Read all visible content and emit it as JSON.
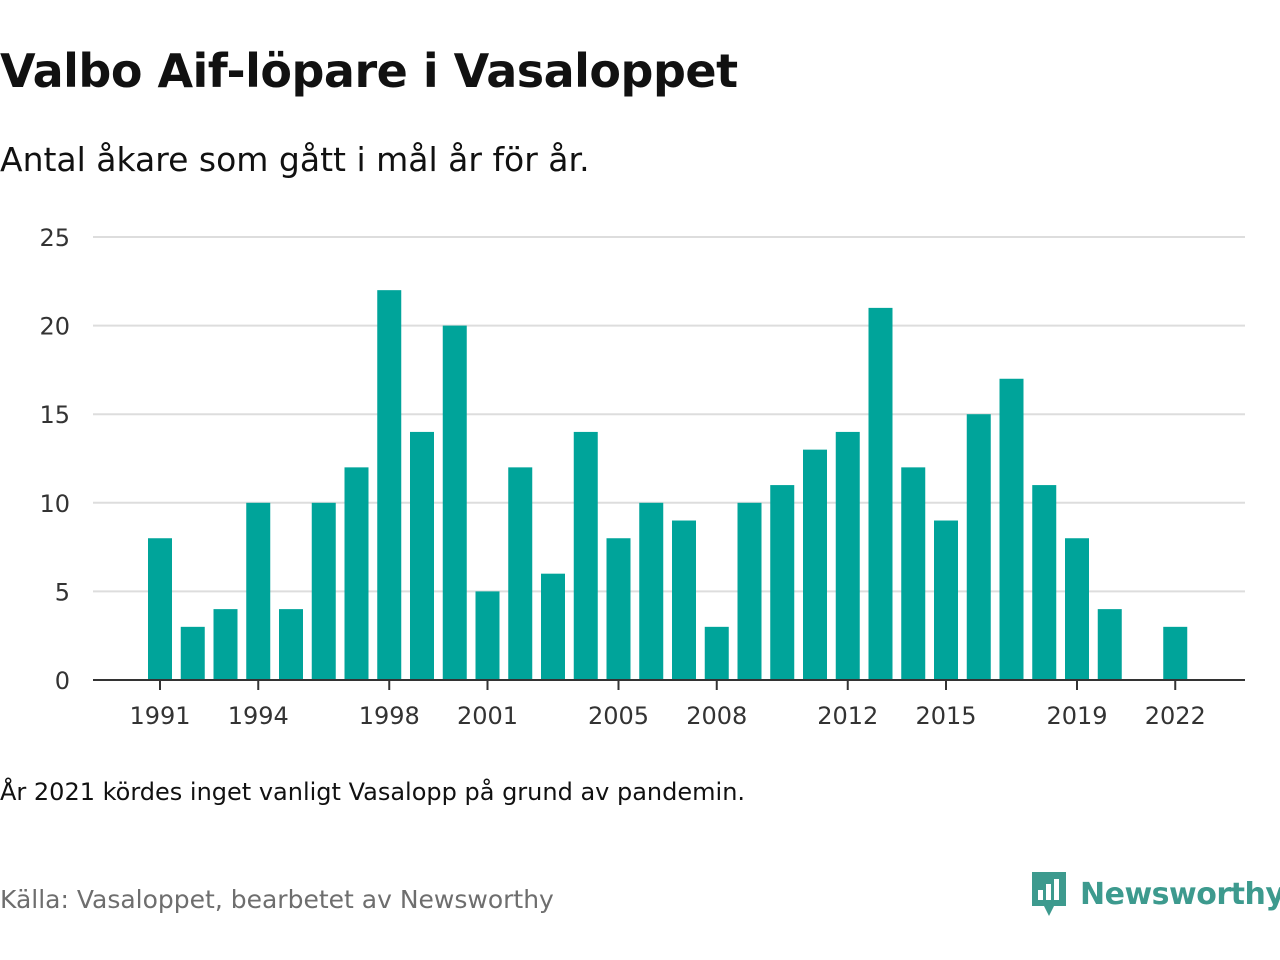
{
  "title": "Valbo Aif-löpare i Vasaloppet",
  "subtitle": "Antal åkare som gått i mål år för år.",
  "note": "År 2021 kördes inget vanligt Vasalopp på grund av pandemin.",
  "source": "Källa: Vasaloppet, bearbetet av Newsworthy",
  "brand": {
    "name": "Newsworthy",
    "icon": "newsworthy-logo-icon",
    "color": "#3d9a8e"
  },
  "chart_data": {
    "type": "bar",
    "color": "#00a49a",
    "grid": true,
    "ylim": [
      0,
      25
    ],
    "yticks": [
      0,
      5,
      10,
      15,
      20,
      25
    ],
    "xtick_labels": [
      "1991",
      "1994",
      "1998",
      "2001",
      "2005",
      "2008",
      "2012",
      "2015",
      "2019",
      "2022"
    ],
    "categories": [
      1991,
      1992,
      1993,
      1994,
      1995,
      1996,
      1997,
      1998,
      1999,
      2000,
      2001,
      2002,
      2003,
      2004,
      2005,
      2006,
      2007,
      2008,
      2009,
      2010,
      2011,
      2012,
      2013,
      2014,
      2015,
      2016,
      2017,
      2018,
      2019,
      2020,
      2021,
      2022
    ],
    "values": [
      8,
      3,
      4,
      10,
      4,
      10,
      12,
      22,
      14,
      20,
      5,
      12,
      6,
      14,
      8,
      10,
      9,
      3,
      10,
      11,
      13,
      14,
      21,
      12,
      9,
      15,
      17,
      11,
      8,
      4,
      null,
      3
    ]
  }
}
